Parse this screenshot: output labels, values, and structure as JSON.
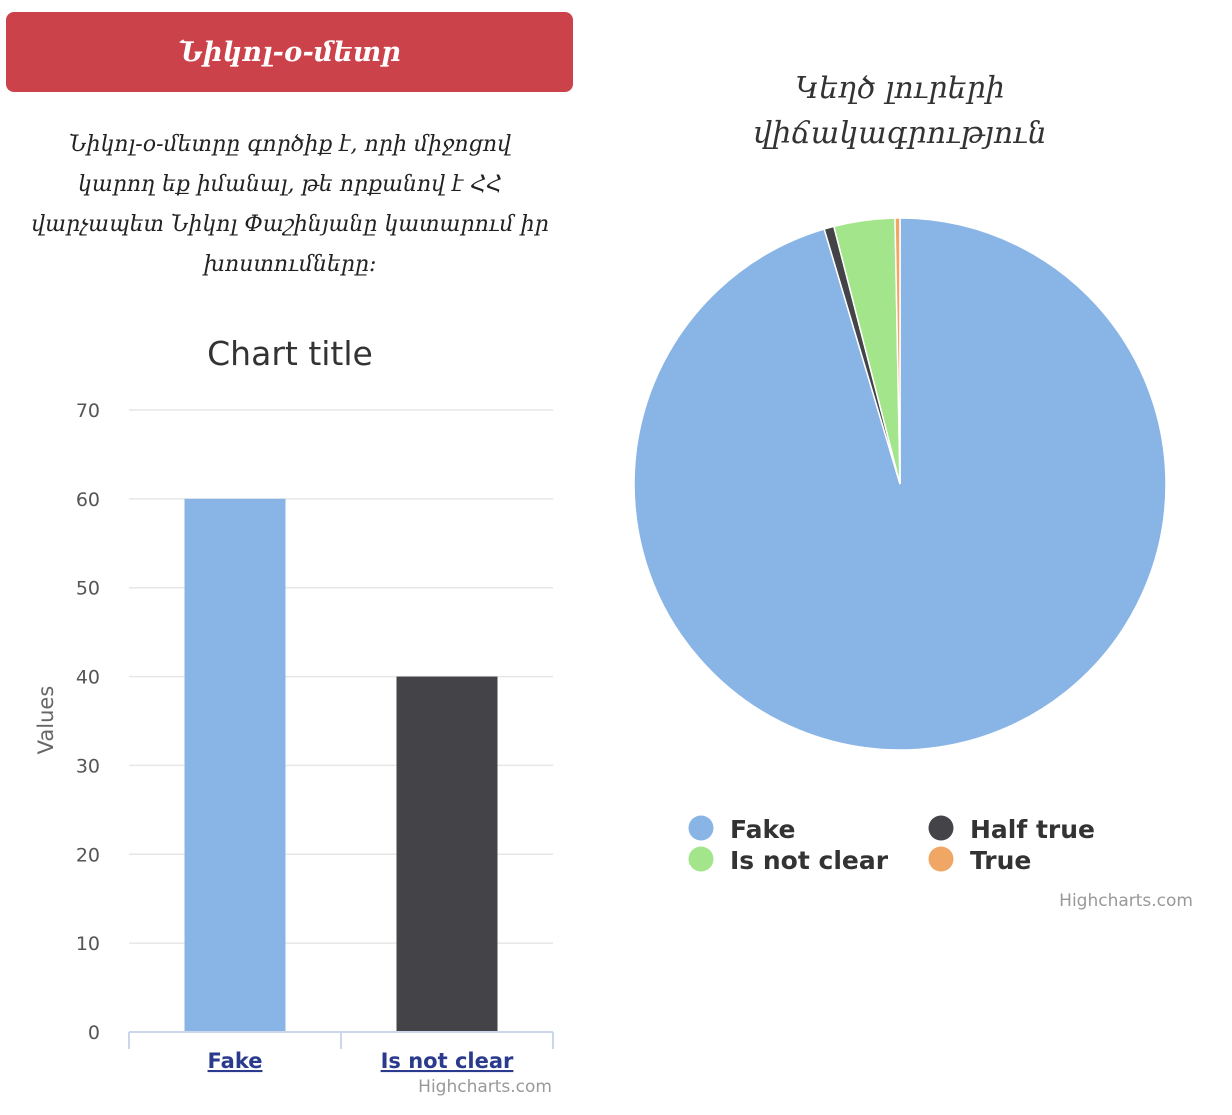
{
  "header": {
    "button_label": "Նիկոլ-օ-մետր"
  },
  "description": "Նիկոլ-օ-մետրը գործիք է, որի միջոցով կարող եք իմանալ, թե որքանով է ՀՀ վարչապետ Նիկոլ Փաշինյանը կատարում իր խոստումները:",
  "credits": {
    "bar": "Highcharts.com",
    "pie": "Highcharts.com"
  },
  "chart_data": [
    {
      "type": "bar",
      "title": "Chart title",
      "ylabel": "Values",
      "xlabel": "",
      "categories": [
        "Fake",
        "Is not clear"
      ],
      "values": [
        60,
        40
      ],
      "colors": [
        "#89b4e6",
        "#434348"
      ],
      "ylim": [
        0,
        70
      ],
      "yticks": [
        0,
        10,
        20,
        30,
        40,
        50,
        60,
        70
      ],
      "grid": true
    },
    {
      "type": "pie",
      "title": "Կեղծ լուրերի վիճակագրություն",
      "title_lines": [
        "Կեղծ լուրերի",
        "վիճակագրություն"
      ],
      "slices": [
        {
          "name": "Fake",
          "value": 95.4,
          "color": "#89b4e6"
        },
        {
          "name": "Half true",
          "value": 0.6,
          "color": "#434348"
        },
        {
          "name": "Is not clear",
          "value": 3.7,
          "color": "#a3e58a"
        },
        {
          "name": "True",
          "value": 0.3,
          "color": "#f0a664"
        }
      ],
      "legend": {
        "placement": "bottom",
        "items": [
          {
            "name": "Fake",
            "color": "#89b4e6"
          },
          {
            "name": "Half true",
            "color": "#434348"
          },
          {
            "name": "Is not clear",
            "color": "#a3e58a"
          },
          {
            "name": "True",
            "color": "#f0a664"
          }
        ]
      }
    }
  ]
}
